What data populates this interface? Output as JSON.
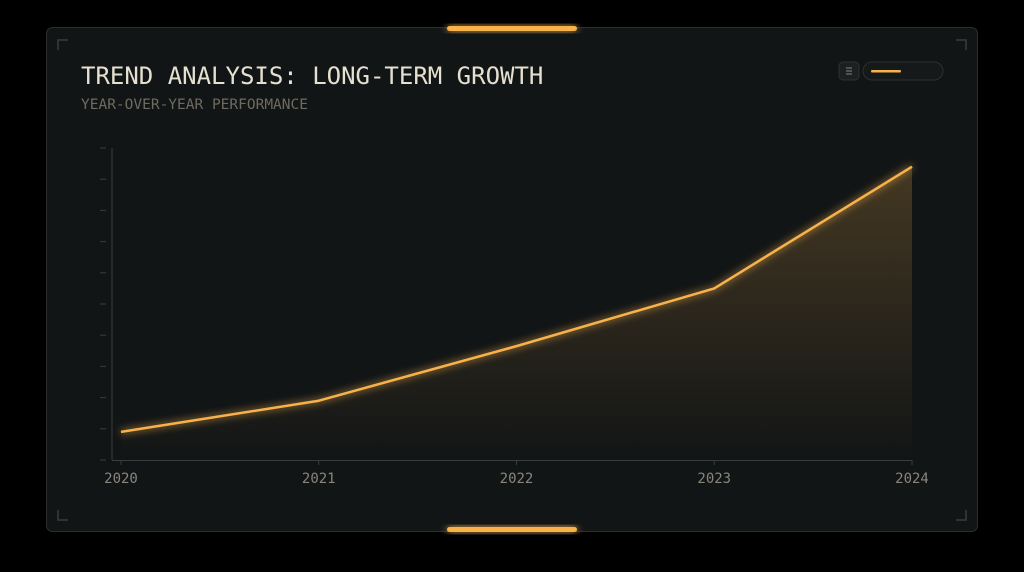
{
  "chart_data": {
    "type": "line",
    "title": "TREND ANALYSIS: LONG-TERM GROWTH",
    "subtitle": "YEAR-OVER-YEAR PERFORMANCE",
    "categories": [
      "2020",
      "2021",
      "2022",
      "2023",
      "2024"
    ],
    "series": [
      {
        "color": "#f7b24c",
        "values": [
          9,
          19,
          36.5,
          55,
          94
        ]
      }
    ],
    "ylim": [
      0,
      100
    ],
    "yticks": [
      0,
      10,
      20,
      30,
      40,
      50,
      60,
      70,
      80,
      90,
      100
    ]
  }
}
